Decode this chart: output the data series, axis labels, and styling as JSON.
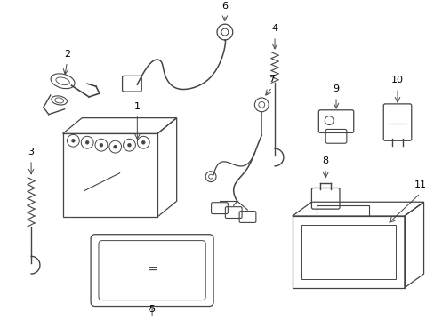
{
  "background_color": "#ffffff",
  "line_color": "#444444",
  "label_color": "#000000",
  "fig_w": 4.89,
  "fig_h": 3.6,
  "dpi": 100
}
